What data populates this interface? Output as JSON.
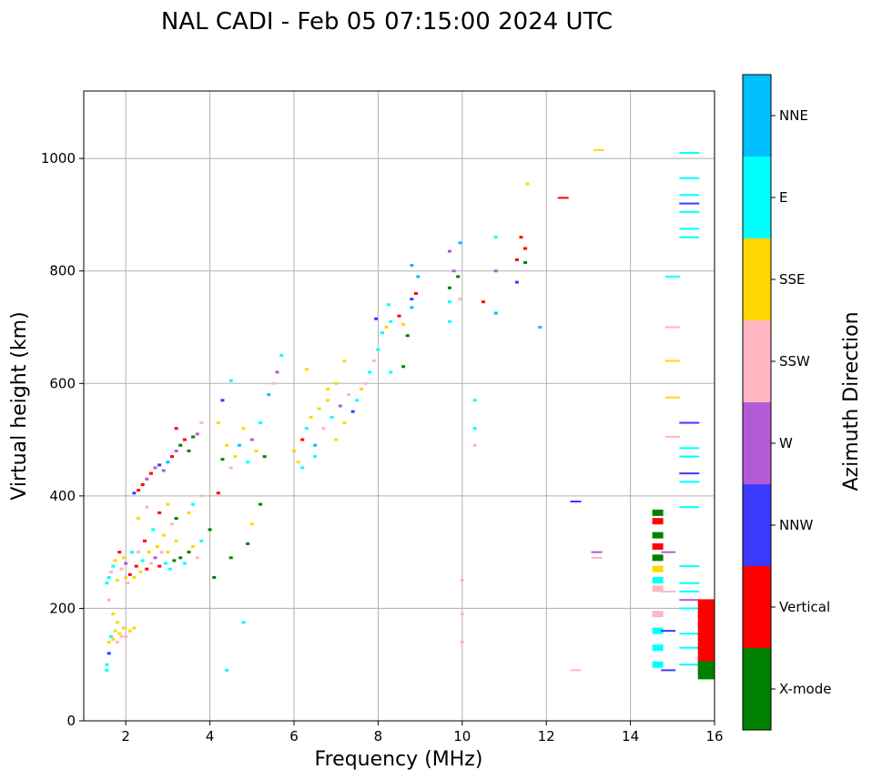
{
  "chart_data": {
    "type": "scatter",
    "title": "NAL CADI - Feb 05 07:15:00 2024 UTC",
    "xlabel": "Frequency (MHz)",
    "ylabel": "Virtual height (km)",
    "xlim": [
      1,
      16
    ],
    "ylim": [
      0,
      1120
    ],
    "xticks": [
      2,
      4,
      6,
      8,
      10,
      12,
      14,
      16
    ],
    "yticks": [
      0,
      200,
      400,
      600,
      800,
      1000
    ],
    "grid": true,
    "colorbar": {
      "label": "Azimuth Direction",
      "categories": [
        {
          "name": "X-mode",
          "color": "#008000"
        },
        {
          "name": "Vertical",
          "color": "#ff0000"
        },
        {
          "name": "NNW",
          "color": "#3a3aff"
        },
        {
          "name": "W",
          "color": "#b55ad6"
        },
        {
          "name": "SSW",
          "color": "#ffb6c1"
        },
        {
          "name": "SSE",
          "color": "#ffd700"
        },
        {
          "name": "E",
          "color": "#00ffff"
        },
        {
          "name": "NNE",
          "color": "#00bfff"
        }
      ]
    },
    "points": [
      [
        1.55,
        90,
        "E"
      ],
      [
        1.55,
        100,
        "E"
      ],
      [
        1.6,
        120,
        "NNW"
      ],
      [
        1.6,
        140,
        "SSE"
      ],
      [
        1.65,
        150,
        "E"
      ],
      [
        1.7,
        145,
        "SSE"
      ],
      [
        1.75,
        160,
        "SSE"
      ],
      [
        1.8,
        140,
        "SSW"
      ],
      [
        1.85,
        155,
        "SSE"
      ],
      [
        1.9,
        150,
        "SSW"
      ],
      [
        1.95,
        165,
        "SSE"
      ],
      [
        2.0,
        150,
        "SSW"
      ],
      [
        2.1,
        160,
        "SSE"
      ],
      [
        2.2,
        165,
        "SSE"
      ],
      [
        1.7,
        190,
        "SSE"
      ],
      [
        1.6,
        215,
        "SSW"
      ],
      [
        1.8,
        175,
        "SSE"
      ],
      [
        1.55,
        245,
        "E"
      ],
      [
        1.6,
        255,
        "E"
      ],
      [
        1.65,
        265,
        "SSW"
      ],
      [
        1.7,
        275,
        "E"
      ],
      [
        1.75,
        285,
        "SSE"
      ],
      [
        1.8,
        250,
        "SSE"
      ],
      [
        1.85,
        300,
        "Vertical"
      ],
      [
        1.9,
        270,
        "SSW"
      ],
      [
        1.95,
        290,
        "SSE"
      ],
      [
        2.0,
        255,
        "SSE"
      ],
      [
        2.0,
        280,
        "W"
      ],
      [
        2.05,
        245,
        "SSW"
      ],
      [
        2.1,
        260,
        "Vertical"
      ],
      [
        2.15,
        300,
        "E"
      ],
      [
        2.2,
        255,
        "SSE"
      ],
      [
        2.25,
        275,
        "Vertical"
      ],
      [
        2.3,
        300,
        "SSW"
      ],
      [
        2.35,
        265,
        "SSE"
      ],
      [
        2.4,
        285,
        "E"
      ],
      [
        2.45,
        320,
        "Vertical"
      ],
      [
        2.5,
        270,
        "Vertical"
      ],
      [
        2.55,
        300,
        "SSE"
      ],
      [
        2.6,
        280,
        "SSW"
      ],
      [
        2.65,
        340,
        "E"
      ],
      [
        2.7,
        290,
        "W"
      ],
      [
        2.75,
        310,
        "SSE"
      ],
      [
        2.8,
        275,
        "Vertical"
      ],
      [
        2.85,
        300,
        "SSW"
      ],
      [
        2.9,
        330,
        "SSE"
      ],
      [
        2.95,
        280,
        "E"
      ],
      [
        3.0,
        300,
        "SSE"
      ],
      [
        3.05,
        270,
        "E"
      ],
      [
        3.1,
        350,
        "SSW"
      ],
      [
        3.15,
        285,
        "X-mode"
      ],
      [
        3.2,
        320,
        "SSE"
      ],
      [
        3.3,
        290,
        "X-mode"
      ],
      [
        3.4,
        280,
        "E"
      ],
      [
        3.5,
        300,
        "X-mode"
      ],
      [
        3.6,
        310,
        "SSE"
      ],
      [
        3.7,
        290,
        "SSW"
      ],
      [
        3.8,
        320,
        "E"
      ],
      [
        2.3,
        360,
        "SSE"
      ],
      [
        2.5,
        380,
        "SSW"
      ],
      [
        2.8,
        370,
        "Vertical"
      ],
      [
        3.0,
        385,
        "SSE"
      ],
      [
        3.2,
        360,
        "X-mode"
      ],
      [
        3.5,
        370,
        "SSE"
      ],
      [
        3.6,
        385,
        "E"
      ],
      [
        3.8,
        400,
        "SSW"
      ],
      [
        2.2,
        405,
        "NNW"
      ],
      [
        2.3,
        410,
        "Vertical"
      ],
      [
        2.4,
        420,
        "Vertical"
      ],
      [
        2.5,
        430,
        "W"
      ],
      [
        2.6,
        440,
        "Vertical"
      ],
      [
        2.7,
        450,
        "W"
      ],
      [
        2.8,
        455,
        "NNW"
      ],
      [
        2.9,
        445,
        "W"
      ],
      [
        3.0,
        460,
        "NNE"
      ],
      [
        3.1,
        470,
        "Vertical"
      ],
      [
        3.2,
        480,
        "W"
      ],
      [
        3.3,
        490,
        "X-mode"
      ],
      [
        3.4,
        500,
        "Vertical"
      ],
      [
        3.5,
        480,
        "X-mode"
      ],
      [
        3.6,
        505,
        "X-mode"
      ],
      [
        3.7,
        510,
        "W"
      ],
      [
        3.8,
        530,
        "SSW"
      ],
      [
        3.2,
        520,
        "Vertical"
      ],
      [
        4.0,
        340,
        "X-mode"
      ],
      [
        4.1,
        255,
        "X-mode"
      ],
      [
        4.2,
        405,
        "Vertical"
      ],
      [
        4.3,
        465,
        "X-mode"
      ],
      [
        4.4,
        490,
        "SSE"
      ],
      [
        4.5,
        450,
        "SSW"
      ],
      [
        4.6,
        470,
        "SSE"
      ],
      [
        4.7,
        490,
        "NNE"
      ],
      [
        4.8,
        520,
        "SSE"
      ],
      [
        4.9,
        460,
        "E"
      ],
      [
        5.0,
        500,
        "W"
      ],
      [
        5.1,
        480,
        "SSE"
      ],
      [
        5.2,
        530,
        "E"
      ],
      [
        5.3,
        470,
        "X-mode"
      ],
      [
        5.4,
        580,
        "NNE"
      ],
      [
        5.5,
        600,
        "SSW"
      ],
      [
        5.6,
        620,
        "W"
      ],
      [
        5.7,
        650,
        "E"
      ],
      [
        4.3,
        570,
        "NNW"
      ],
      [
        4.5,
        605,
        "E"
      ],
      [
        4.2,
        530,
        "SSE"
      ],
      [
        4.5,
        290,
        "X-mode"
      ],
      [
        4.9,
        315,
        "X-mode"
      ],
      [
        5.2,
        385,
        "X-mode"
      ],
      [
        5.0,
        350,
        "SSE"
      ],
      [
        4.8,
        175,
        "E"
      ],
      [
        4.4,
        90,
        "E"
      ],
      [
        6.0,
        480,
        "SSE"
      ],
      [
        6.1,
        460,
        "SSE"
      ],
      [
        6.2,
        500,
        "Vertical"
      ],
      [
        6.3,
        520,
        "E"
      ],
      [
        6.4,
        540,
        "SSE"
      ],
      [
        6.5,
        490,
        "NNE"
      ],
      [
        6.6,
        555,
        "SSE"
      ],
      [
        6.7,
        520,
        "SSW"
      ],
      [
        6.8,
        570,
        "SSE"
      ],
      [
        6.9,
        540,
        "E"
      ],
      [
        7.0,
        500,
        "SSE"
      ],
      [
        7.1,
        560,
        "W"
      ],
      [
        7.2,
        530,
        "SSE"
      ],
      [
        7.3,
        580,
        "SSW"
      ],
      [
        7.4,
        550,
        "NNW"
      ],
      [
        7.5,
        570,
        "E"
      ],
      [
        7.6,
        590,
        "SSE"
      ],
      [
        7.7,
        600,
        "SSW"
      ],
      [
        7.8,
        620,
        "E"
      ],
      [
        7.9,
        640,
        "SSW"
      ],
      [
        6.3,
        625,
        "SSE"
      ],
      [
        6.5,
        470,
        "E"
      ],
      [
        6.8,
        590,
        "SSE"
      ],
      [
        7.0,
        600,
        "SSE"
      ],
      [
        7.2,
        640,
        "SSE"
      ],
      [
        6.2,
        450,
        "E"
      ],
      [
        8.0,
        660,
        "E"
      ],
      [
        8.1,
        690,
        "E"
      ],
      [
        8.2,
        700,
        "SSE"
      ],
      [
        8.3,
        710,
        "E"
      ],
      [
        8.5,
        720,
        "Vertical"
      ],
      [
        8.6,
        705,
        "SSE"
      ],
      [
        8.7,
        685,
        "X-mode"
      ],
      [
        8.8,
        735,
        "NNE"
      ],
      [
        8.9,
        760,
        "Vertical"
      ],
      [
        8.95,
        790,
        "NNE"
      ],
      [
        8.8,
        810,
        "NNE"
      ],
      [
        8.6,
        630,
        "X-mode"
      ],
      [
        8.3,
        620,
        "E"
      ],
      [
        7.95,
        715,
        "NNW"
      ],
      [
        8.25,
        740,
        "E"
      ],
      [
        8.8,
        750,
        "NNW"
      ],
      [
        9.7,
        710,
        "E"
      ],
      [
        9.7,
        745,
        "E"
      ],
      [
        9.7,
        770,
        "X-mode"
      ],
      [
        9.8,
        800,
        "W"
      ],
      [
        9.7,
        835,
        "W"
      ],
      [
        9.95,
        850,
        "NNE"
      ],
      [
        9.9,
        790,
        "X-mode"
      ],
      [
        9.95,
        750,
        "SSW"
      ],
      [
        10.3,
        570,
        "E"
      ],
      [
        10.3,
        520,
        "E"
      ],
      [
        10.3,
        490,
        "SSW"
      ],
      [
        10.0,
        250,
        "SSW"
      ],
      [
        10.0,
        190,
        "SSW"
      ],
      [
        10.0,
        140,
        "SSW"
      ],
      [
        10.5,
        745,
        "Vertical"
      ],
      [
        10.8,
        725,
        "NNE"
      ],
      [
        10.8,
        800,
        "W"
      ],
      [
        10.8,
        860,
        "E"
      ],
      [
        11.3,
        820,
        "Vertical"
      ],
      [
        11.4,
        860,
        "Vertical"
      ],
      [
        11.5,
        840,
        "Vertical"
      ],
      [
        11.3,
        780,
        "NNW"
      ],
      [
        11.5,
        815,
        "X-mode"
      ],
      [
        11.55,
        955,
        "SSE"
      ],
      [
        11.85,
        700,
        "NNE"
      ],
      [
        12.4,
        930,
        "Vertical"
      ],
      [
        12.7,
        390,
        "NNW"
      ],
      [
        12.7,
        90,
        "SSW"
      ],
      [
        13.2,
        300,
        "W"
      ],
      [
        13.2,
        290,
        "SSW"
      ],
      [
        13.25,
        1015,
        "SSE"
      ],
      [
        14.65,
        370,
        "X-mode"
      ],
      [
        14.65,
        355,
        "Vertical"
      ],
      [
        14.65,
        330,
        "X-mode"
      ],
      [
        14.65,
        310,
        "Vertical"
      ],
      [
        14.65,
        290,
        "X-mode"
      ],
      [
        14.65,
        270,
        "SSE"
      ],
      [
        14.65,
        250,
        "E"
      ],
      [
        14.65,
        235,
        "SSW"
      ],
      [
        14.65,
        190,
        "SSW"
      ],
      [
        14.65,
        160,
        "E"
      ],
      [
        14.65,
        130,
        "E"
      ],
      [
        14.65,
        100,
        "E"
      ],
      [
        14.9,
        300,
        "W"
      ],
      [
        14.9,
        230,
        "SSW"
      ],
      [
        14.9,
        160,
        "NNW"
      ],
      [
        14.9,
        90,
        "NNW"
      ],
      [
        15.0,
        700,
        "SSW"
      ],
      [
        15.0,
        640,
        "SSE"
      ],
      [
        15.0,
        575,
        "SSE"
      ],
      [
        15.0,
        505,
        "SSW"
      ],
      [
        15.0,
        790,
        "E"
      ],
      [
        15.4,
        1010,
        "E"
      ],
      [
        15.4,
        965,
        "E"
      ],
      [
        15.4,
        935,
        "E"
      ],
      [
        15.4,
        920,
        "NNW"
      ],
      [
        15.4,
        905,
        "E"
      ],
      [
        15.4,
        875,
        "E"
      ],
      [
        15.4,
        860,
        "E"
      ],
      [
        15.4,
        530,
        "NNW"
      ],
      [
        15.4,
        485,
        "E"
      ],
      [
        15.4,
        470,
        "E"
      ],
      [
        15.4,
        440,
        "NNW"
      ],
      [
        15.4,
        425,
        "E"
      ],
      [
        15.4,
        380,
        "E"
      ],
      [
        15.4,
        275,
        "E"
      ],
      [
        15.4,
        245,
        "E"
      ],
      [
        15.4,
        230,
        "E"
      ],
      [
        15.4,
        200,
        "E"
      ],
      [
        15.4,
        155,
        "E"
      ],
      [
        15.4,
        130,
        "E"
      ],
      [
        15.4,
        100,
        "E"
      ],
      [
        15.4,
        215,
        "W"
      ],
      [
        15.8,
        200,
        "Vertical"
      ],
      [
        15.8,
        180,
        "Vertical"
      ],
      [
        15.8,
        160,
        "Vertical"
      ],
      [
        15.8,
        140,
        "Vertical"
      ],
      [
        15.8,
        120,
        "Vertical"
      ],
      [
        15.8,
        100,
        "Vertical"
      ],
      [
        15.8,
        90,
        "X-mode"
      ]
    ]
  }
}
